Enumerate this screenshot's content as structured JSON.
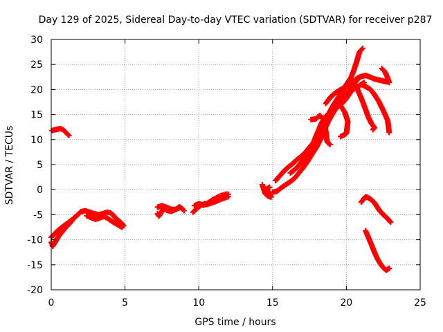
{
  "chart_data": {
    "type": "scatter",
    "title": "Day 129 of 2025, Sidereal Day-to-day VTEC variation (SDTVAR) for receiver p287",
    "xlabel": "GPS time / hours",
    "ylabel": "SDTVAR / TECUs",
    "xlim": [
      0,
      25
    ],
    "ylim": [
      -20,
      30
    ],
    "x_ticks": [
      0,
      5,
      10,
      15,
      20,
      25
    ],
    "y_ticks": [
      -20,
      -15,
      -10,
      -5,
      0,
      5,
      10,
      15,
      20,
      25,
      30
    ],
    "x_tick_labels": [
      "0",
      "5",
      "10",
      "15",
      "20",
      "25"
    ],
    "y_tick_labels": [
      "-20",
      "-15",
      "-10",
      "-5",
      "0",
      "5",
      "10",
      "15",
      "20",
      "25",
      "30"
    ],
    "grid": true,
    "marker": "+",
    "color": "#ff0000",
    "series": [
      {
        "name": "s1",
        "points": [
          [
            0.05,
            11.8
          ],
          [
            0.3,
            12.0
          ],
          [
            0.6,
            12.2
          ],
          [
            0.8,
            12.0
          ],
          [
            1.0,
            11.4
          ],
          [
            1.2,
            10.8
          ]
        ]
      },
      {
        "name": "s2",
        "points": [
          [
            0.0,
            -10.5
          ],
          [
            0.1,
            -11.3
          ],
          [
            0.25,
            -10.6
          ],
          [
            0.4,
            -9.8
          ],
          [
            0.6,
            -8.9
          ],
          [
            0.8,
            -8.2
          ],
          [
            1.0,
            -7.5
          ],
          [
            1.2,
            -6.9
          ],
          [
            1.4,
            -6.2
          ]
        ]
      },
      {
        "name": "s3",
        "points": [
          [
            0.0,
            -9.5
          ],
          [
            0.3,
            -8.6
          ],
          [
            0.6,
            -7.8
          ],
          [
            0.9,
            -7.1
          ],
          [
            1.2,
            -6.5
          ],
          [
            1.5,
            -5.8
          ],
          [
            1.8,
            -5.0
          ],
          [
            2.0,
            -4.4
          ],
          [
            2.3,
            -4.2
          ],
          [
            2.6,
            -4.5
          ],
          [
            2.9,
            -4.8
          ],
          [
            3.2,
            -5.0
          ],
          [
            3.5,
            -4.8
          ],
          [
            3.8,
            -4.5
          ],
          [
            4.0,
            -4.6
          ],
          [
            4.2,
            -5.1
          ],
          [
            4.4,
            -5.8
          ],
          [
            4.6,
            -6.3
          ],
          [
            4.8,
            -6.8
          ],
          [
            4.9,
            -7.2
          ]
        ]
      },
      {
        "name": "s4",
        "points": [
          [
            2.4,
            -5.2
          ],
          [
            2.7,
            -5.6
          ],
          [
            3.0,
            -5.9
          ],
          [
            3.2,
            -5.8
          ],
          [
            3.4,
            -5.5
          ],
          [
            3.6,
            -5.4
          ],
          [
            3.8,
            -5.7
          ],
          [
            4.0,
            -6.1
          ],
          [
            4.2,
            -6.5
          ],
          [
            4.5,
            -7.0
          ],
          [
            4.8,
            -7.5
          ]
        ]
      },
      {
        "name": "s5",
        "points": [
          [
            7.2,
            -4.8
          ],
          [
            7.3,
            -5.3
          ],
          [
            7.6,
            -3.8
          ],
          [
            7.9,
            -4.2
          ],
          [
            8.2,
            -4.3
          ],
          [
            8.5,
            -3.8
          ],
          [
            8.7,
            -3.4
          ],
          [
            8.9,
            -3.9
          ],
          [
            9.0,
            -4.2
          ]
        ]
      },
      {
        "name": "s6",
        "points": [
          [
            7.2,
            -3.5
          ],
          [
            7.5,
            -3.2
          ],
          [
            7.8,
            -3.5
          ],
          [
            8.1,
            -3.9
          ],
          [
            8.4,
            -4.0
          ],
          [
            8.7,
            -3.6
          ]
        ]
      },
      {
        "name": "s7",
        "points": [
          [
            9.6,
            -4.5
          ],
          [
            9.8,
            -4.0
          ],
          [
            10.0,
            -3.4
          ],
          [
            10.2,
            -3.0
          ],
          [
            10.4,
            -2.8
          ],
          [
            10.6,
            -2.7
          ],
          [
            10.8,
            -2.3
          ],
          [
            11.0,
            -1.9
          ],
          [
            11.2,
            -1.6
          ],
          [
            11.4,
            -1.3
          ],
          [
            11.6,
            -1.1
          ],
          [
            11.8,
            -0.9
          ],
          [
            12.0,
            -0.9
          ]
        ]
      },
      {
        "name": "s8",
        "points": [
          [
            9.7,
            -3.2
          ],
          [
            10.0,
            -2.8
          ],
          [
            10.3,
            -3.1
          ],
          [
            10.6,
            -2.9
          ],
          [
            10.9,
            -2.6
          ],
          [
            11.2,
            -2.3
          ],
          [
            11.5,
            -1.9
          ],
          [
            11.8,
            -1.6
          ],
          [
            12.0,
            -1.4
          ]
        ]
      },
      {
        "name": "s9",
        "points": [
          [
            14.3,
            1.0
          ],
          [
            14.5,
            -0.8
          ],
          [
            14.7,
            -1.3
          ],
          [
            14.9,
            -1.5
          ],
          [
            14.6,
            0.2
          ],
          [
            14.8,
            0.5
          ]
        ]
      },
      {
        "name": "s10",
        "points": [
          [
            15.0,
            -0.5
          ],
          [
            15.3,
            -0.3
          ],
          [
            15.6,
            0.4
          ],
          [
            15.9,
            1.0
          ],
          [
            16.2,
            1.6
          ],
          [
            16.5,
            2.3
          ],
          [
            16.8,
            3.4
          ],
          [
            17.1,
            4.5
          ],
          [
            17.4,
            5.8
          ],
          [
            17.7,
            7.2
          ],
          [
            18.0,
            8.6
          ],
          [
            18.2,
            9.8
          ],
          [
            18.4,
            11.0
          ],
          [
            18.6,
            12.5
          ],
          [
            18.8,
            13.8
          ],
          [
            19.0,
            14.8
          ],
          [
            19.2,
            15.8
          ],
          [
            19.4,
            16.6
          ],
          [
            19.6,
            17.2
          ]
        ]
      },
      {
        "name": "s11",
        "points": [
          [
            15.2,
            1.8
          ],
          [
            15.5,
            2.8
          ],
          [
            15.8,
            3.8
          ],
          [
            16.1,
            4.6
          ],
          [
            16.4,
            5.3
          ],
          [
            16.7,
            6.1
          ],
          [
            17.0,
            6.8
          ],
          [
            17.3,
            7.7
          ],
          [
            17.6,
            8.8
          ],
          [
            17.9,
            10.0
          ],
          [
            18.2,
            11.6
          ],
          [
            18.5,
            13.4
          ],
          [
            18.8,
            15.2
          ],
          [
            19.1,
            16.8
          ],
          [
            19.4,
            18.2
          ],
          [
            19.7,
            19.6
          ],
          [
            20.0,
            21.0
          ],
          [
            20.3,
            22.3
          ],
          [
            20.5,
            23.8
          ],
          [
            20.7,
            25.6
          ],
          [
            20.9,
            27.6
          ],
          [
            21.1,
            28.2
          ]
        ]
      },
      {
        "name": "s12",
        "points": [
          [
            16.2,
            3.3
          ],
          [
            16.5,
            4.0
          ],
          [
            16.8,
            4.9
          ],
          [
            17.1,
            6.0
          ],
          [
            17.4,
            7.3
          ],
          [
            17.7,
            8.8
          ],
          [
            18.0,
            10.4
          ],
          [
            18.3,
            12.0
          ],
          [
            18.6,
            13.6
          ],
          [
            18.9,
            15.2
          ],
          [
            19.2,
            16.6
          ],
          [
            19.5,
            17.8
          ],
          [
            19.8,
            18.8
          ],
          [
            20.1,
            19.6
          ],
          [
            20.4,
            20.6
          ],
          [
            20.7,
            21.8
          ],
          [
            20.9,
            22.4
          ]
        ]
      },
      {
        "name": "s13",
        "points": [
          [
            17.3,
            5.6
          ],
          [
            17.6,
            7.8
          ],
          [
            17.9,
            10.4
          ],
          [
            18.1,
            11.8
          ],
          [
            18.3,
            13.2
          ],
          [
            18.5,
            14.3
          ],
          [
            18.8,
            15.2
          ],
          [
            19.1,
            15.8
          ],
          [
            19.4,
            16.5
          ],
          [
            19.7,
            17.2
          ],
          [
            20.0,
            18.2
          ],
          [
            20.3,
            19.6
          ],
          [
            20.6,
            20.3
          ],
          [
            20.9,
            20.8
          ],
          [
            21.2,
            21.4
          ]
        ]
      },
      {
        "name": "s14",
        "points": [
          [
            18.6,
            17.2
          ],
          [
            18.9,
            18.4
          ],
          [
            19.2,
            19.2
          ],
          [
            19.5,
            19.8
          ],
          [
            19.8,
            20.3
          ],
          [
            20.1,
            20.8
          ],
          [
            20.4,
            21.3
          ],
          [
            20.7,
            22.2
          ],
          [
            21.0,
            22.6
          ],
          [
            21.3,
            22.8
          ],
          [
            21.6,
            22.5
          ],
          [
            21.9,
            22.1
          ],
          [
            22.2,
            21.9
          ],
          [
            22.5,
            21.7
          ],
          [
            22.8,
            21.5
          ]
        ]
      },
      {
        "name": "s15",
        "points": [
          [
            20.4,
            21.2
          ],
          [
            20.7,
            20.4
          ],
          [
            20.9,
            19.0
          ],
          [
            21.1,
            17.6
          ],
          [
            21.3,
            16.0
          ],
          [
            21.5,
            14.4
          ],
          [
            21.7,
            13.2
          ],
          [
            21.9,
            12.4
          ],
          [
            21.8,
            12.0
          ]
        ]
      },
      {
        "name": "s16",
        "points": [
          [
            21.0,
            21.0
          ],
          [
            21.3,
            20.6
          ],
          [
            21.6,
            20.1
          ],
          [
            21.9,
            19.0
          ],
          [
            22.2,
            17.6
          ],
          [
            22.5,
            15.8
          ],
          [
            22.8,
            13.8
          ],
          [
            22.9,
            11.4
          ]
        ]
      },
      {
        "name": "s17",
        "points": [
          [
            22.4,
            24.2
          ],
          [
            22.6,
            23.6
          ],
          [
            22.8,
            22.3
          ],
          [
            22.9,
            21.4
          ]
        ]
      },
      {
        "name": "s18",
        "points": [
          [
            19.6,
            16.8
          ],
          [
            19.9,
            15.4
          ],
          [
            20.1,
            13.6
          ],
          [
            20.0,
            11.2
          ],
          [
            19.6,
            10.6
          ]
        ]
      },
      {
        "name": "s19",
        "points": [
          [
            17.6,
            14.0
          ],
          [
            17.9,
            14.1
          ],
          [
            18.2,
            14.8
          ],
          [
            18.5,
            13.9
          ],
          [
            18.7,
            9.5
          ],
          [
            18.9,
            9.0
          ]
        ]
      },
      {
        "name": "s20",
        "points": [
          [
            21.0,
            -2.5
          ],
          [
            21.3,
            -1.4
          ],
          [
            21.6,
            -1.8
          ],
          [
            21.9,
            -2.6
          ],
          [
            22.2,
            -4.0
          ],
          [
            22.5,
            -5.0
          ],
          [
            22.8,
            -5.8
          ],
          [
            23.0,
            -6.5
          ]
        ]
      },
      {
        "name": "s21",
        "points": [
          [
            21.3,
            -8.2
          ],
          [
            21.5,
            -9.6
          ],
          [
            21.7,
            -11.0
          ],
          [
            21.9,
            -12.5
          ],
          [
            22.1,
            -13.8
          ],
          [
            22.3,
            -14.8
          ],
          [
            22.5,
            -15.6
          ],
          [
            22.7,
            -16.1
          ],
          [
            22.9,
            -15.7
          ]
        ]
      }
    ]
  }
}
